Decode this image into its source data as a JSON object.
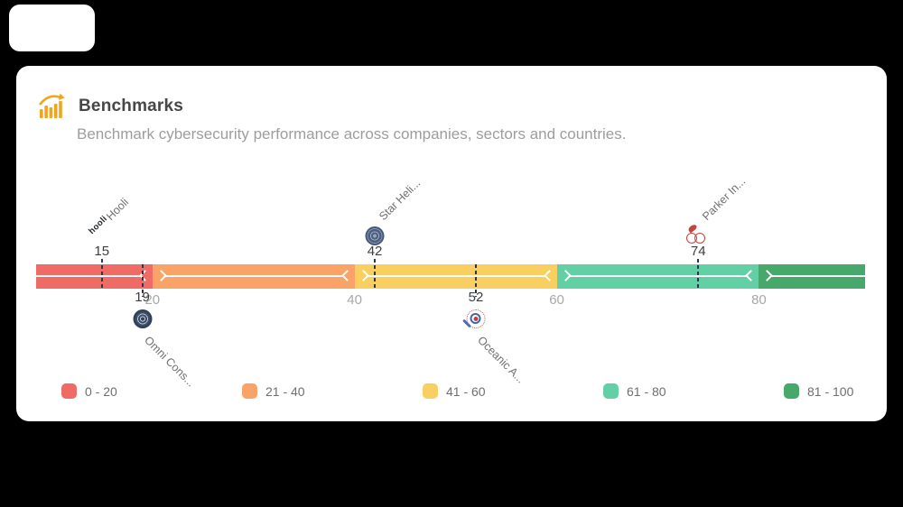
{
  "page": {
    "background_color": "#000000"
  },
  "header": {
    "icon": "bar-chart-trend-icon",
    "icon_color": "#F1A51F",
    "title": "Benchmarks",
    "subtitle": "Benchmark cybersecurity performance across companies, sectors and countries."
  },
  "chart_data": {
    "type": "benchmark-scale",
    "title": "Benchmarks",
    "axis": {
      "min": 0,
      "max": 100,
      "visible_domain": [
        8.5,
        90.5
      ],
      "tick_values": [
        20,
        40,
        60,
        80
      ],
      "grid": false
    },
    "segments": [
      {
        "range": [
          0,
          20
        ],
        "color": "#EE6C65",
        "legend_label": "0 - 20"
      },
      {
        "range": [
          20,
          40
        ],
        "color": "#F9A369",
        "legend_label": "21 - 40"
      },
      {
        "range": [
          40,
          60
        ],
        "color": "#F8CF60",
        "legend_label": "41 - 60"
      },
      {
        "range": [
          60,
          80
        ],
        "color": "#62CFA4",
        "legend_label": "61 - 80"
      },
      {
        "range": [
          80,
          100
        ],
        "color": "#47A86B",
        "legend_label": "81 - 100"
      }
    ],
    "markers": [
      {
        "company": "Hooli",
        "score": 15,
        "side": "top",
        "logo": "hooli-wordmark-logo",
        "logo_text": "hooli"
      },
      {
        "company": "Omni Cons...",
        "score": 19,
        "side": "bottom",
        "logo": "omni-seal-logo"
      },
      {
        "company": "Star Heli...",
        "score": 42,
        "side": "top",
        "logo": "star-seal-logo"
      },
      {
        "company": "Oceanic A...",
        "score": 52,
        "side": "bottom",
        "logo": "oceanic-rings-logo"
      },
      {
        "company": "Parker In...",
        "score": 74,
        "side": "top",
        "logo": "parker-circles-logo"
      }
    ],
    "marker_line_color": "#2C3A47",
    "legend_position": "bottom"
  }
}
